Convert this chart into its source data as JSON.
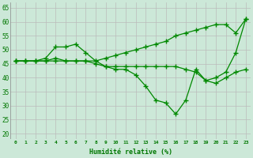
{
  "xlabel": "Humidité relative (%)",
  "background_color": "#cce8d8",
  "grid_color": "#bbbbbb",
  "line_color": "#008800",
  "marker": "+",
  "series": [
    [
      46,
      46,
      46,
      47,
      51,
      51,
      52,
      49,
      46,
      44,
      43,
      43,
      41,
      37,
      32,
      31,
      27,
      32,
      43,
      39,
      38,
      40,
      42,
      43
    ],
    [
      46,
      46,
      46,
      46,
      46,
      46,
      46,
      46,
      46,
      47,
      48,
      49,
      50,
      51,
      52,
      53,
      55,
      56,
      57,
      58,
      59,
      59,
      56,
      61
    ],
    [
      46,
      46,
      46,
      46,
      47,
      46,
      46,
      46,
      45,
      44,
      44,
      44,
      44,
      44,
      44,
      44,
      44,
      43,
      42,
      39,
      40,
      42,
      49,
      61
    ]
  ],
  "xtick_labels": [
    "0",
    "1",
    "2",
    "3",
    "4",
    "5",
    "6",
    "7",
    "8",
    "9",
    "10",
    "11",
    "12",
    "13",
    "14",
    "15",
    "16",
    "17",
    "18",
    "19",
    "20",
    "21",
    "22",
    "23"
  ],
  "ytick_values": [
    20,
    25,
    30,
    35,
    40,
    45,
    50,
    55,
    60,
    65
  ],
  "ylim": [
    18,
    67
  ],
  "xlim": [
    -0.5,
    23.5
  ],
  "figsize": [
    3.2,
    2.0
  ],
  "dpi": 100
}
